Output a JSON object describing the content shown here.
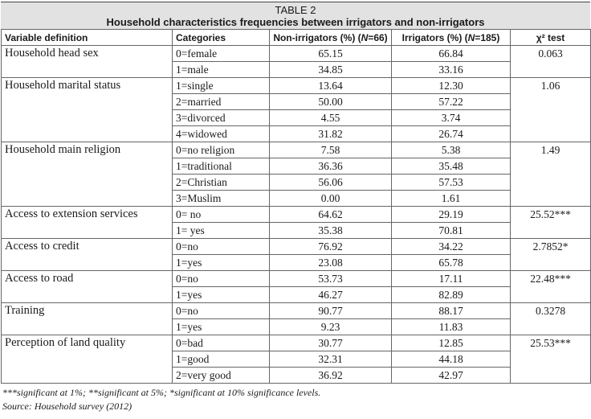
{
  "table": {
    "title": "TABLE 2",
    "subtitle": "Household characteristics frequencies between irrigators and non-irrigators",
    "headers": {
      "variable": "Variable definition",
      "categories": "Categories",
      "non_irrigators": "Non-irrigators (%) (N=66)",
      "irrigators": "Irrigators (%) (N=185)",
      "chi": "χ² test"
    },
    "groups": [
      {
        "variable": "Household head sex",
        "chi": "0.063",
        "rows": [
          {
            "category": "0=female",
            "non_irrigators": "65.15",
            "irrigators": "66.84"
          },
          {
            "category": "1=male",
            "non_irrigators": "34.85",
            "irrigators": "33.16"
          }
        ]
      },
      {
        "variable": "Household marital status",
        "chi": "1.06",
        "rows": [
          {
            "category": "1=single",
            "non_irrigators": "13.64",
            "irrigators": "12.30"
          },
          {
            "category": "2=married",
            "non_irrigators": "50.00",
            "irrigators": "57.22"
          },
          {
            "category": "3=divorced",
            "non_irrigators": "4.55",
            "irrigators": "3.74"
          },
          {
            "category": "4=widowed",
            "non_irrigators": "31.82",
            "irrigators": "26.74"
          }
        ]
      },
      {
        "variable": "Household main religion",
        "chi": "1.49",
        "rows": [
          {
            "category": "0=no religion",
            "non_irrigators": "7.58",
            "irrigators": "5.38"
          },
          {
            "category": "1=traditional",
            "non_irrigators": "36.36",
            "irrigators": "35.48"
          },
          {
            "category": "2=Christian",
            "non_irrigators": "56.06",
            "irrigators": "57.53"
          },
          {
            "category": "3=Muslim",
            "non_irrigators": "0.00",
            "irrigators": "1.61"
          }
        ]
      },
      {
        "variable": "Access to extension services",
        "chi": "25.52***",
        "rows": [
          {
            "category": "0= no",
            "non_irrigators": "64.62",
            "irrigators": "29.19"
          },
          {
            "category": "1= yes",
            "non_irrigators": "35.38",
            "irrigators": "70.81"
          }
        ]
      },
      {
        "variable": "Access to credit",
        "chi": "2.7852*",
        "rows": [
          {
            "category": "0=no",
            "non_irrigators": "76.92",
            "irrigators": "34.22"
          },
          {
            "category": "1=yes",
            "non_irrigators": "23.08",
            "irrigators": "65.78"
          }
        ]
      },
      {
        "variable": "Access to road",
        "chi": "22.48***",
        "rows": [
          {
            "category": "0=no",
            "non_irrigators": "53.73",
            "irrigators": "17.11"
          },
          {
            "category": "1=yes",
            "non_irrigators": "46.27",
            "irrigators": "82.89"
          }
        ]
      },
      {
        "variable": "Training",
        "chi": "0.3278",
        "rows": [
          {
            "category": "0=no",
            "non_irrigators": "90.77",
            "irrigators": "88.17"
          },
          {
            "category": "1=yes",
            "non_irrigators": "9.23",
            "irrigators": "11.83"
          }
        ]
      },
      {
        "variable": "Perception of land quality",
        "chi": "25.53***",
        "rows": [
          {
            "category": "0=bad",
            "non_irrigators": "30.77",
            "irrigators": "12.85"
          },
          {
            "category": "1=good",
            "non_irrigators": "32.31",
            "irrigators": "44.18"
          },
          {
            "category": "2=very good",
            "non_irrigators": "36.92",
            "irrigators": "42.97"
          }
        ]
      }
    ],
    "footnote": "***significant at 1%; **significant at 5%; *significant at 10% significance levels.",
    "source": "Source: Household survey (2012)"
  },
  "colors": {
    "title_bg": "#e2e2e2",
    "border": "#666666"
  }
}
